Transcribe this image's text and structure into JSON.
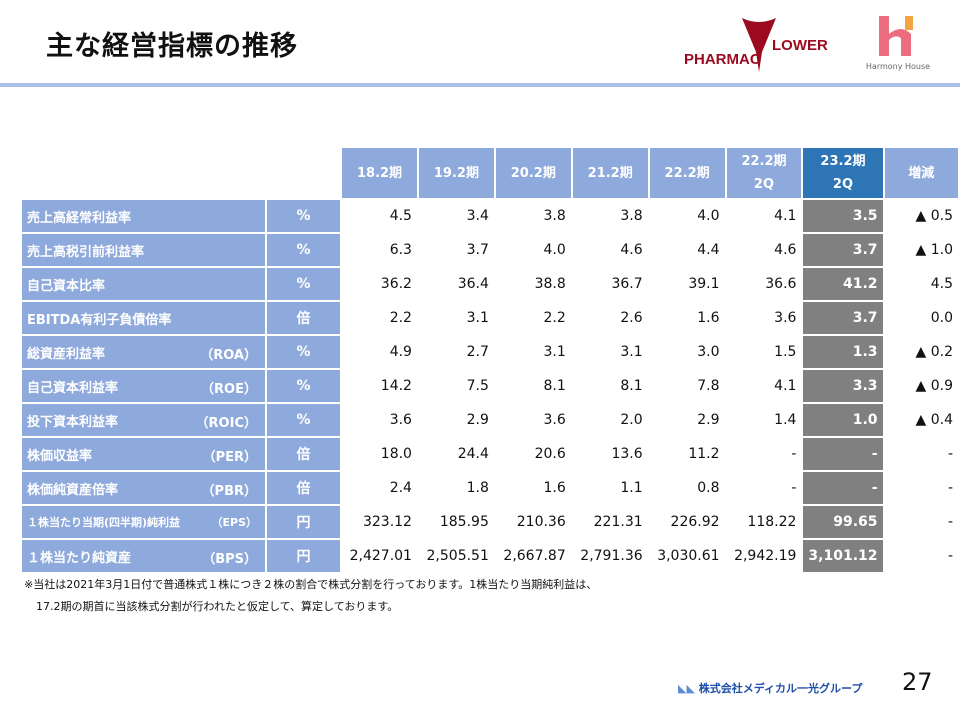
{
  "title": "主な経営指標の推移",
  "logos": {
    "pharmacflower": "PHARMAC FLOWER",
    "harmony": "Harmony House",
    "company": "株式会社メディカル一光グループ"
  },
  "headers": [
    "18.2期",
    "19.2期",
    "20.2期",
    "21.2期",
    "22.2期",
    "22.2期 2Q",
    "23.2期 2Q",
    "増減"
  ],
  "rows": [
    {
      "label": "売上高経常利益率",
      "abbr": "",
      "unit": "%",
      "values": [
        "4.5",
        "3.4",
        "3.8",
        "3.8",
        "4.0",
        "4.1",
        "3.5",
        "▲ 0.5"
      ]
    },
    {
      "label": "売上高税引前利益率",
      "abbr": "",
      "unit": "%",
      "values": [
        "6.3",
        "3.7",
        "4.0",
        "4.6",
        "4.4",
        "4.6",
        "3.7",
        "▲ 1.0"
      ]
    },
    {
      "label": "自己資本比率",
      "abbr": "",
      "unit": "%",
      "values": [
        "36.2",
        "36.4",
        "38.8",
        "36.7",
        "39.1",
        "36.6",
        "41.2",
        "4.5"
      ]
    },
    {
      "label": "EBITDA有利子負債倍率",
      "abbr": "",
      "unit": "倍",
      "values": [
        "2.2",
        "3.1",
        "2.2",
        "2.6",
        "1.6",
        "3.6",
        "3.7",
        "0.0"
      ]
    },
    {
      "label": "総資産利益率",
      "abbr": "（ROA）",
      "unit": "%",
      "values": [
        "4.9",
        "2.7",
        "3.1",
        "3.1",
        "3.0",
        "1.5",
        "1.3",
        "▲ 0.2"
      ]
    },
    {
      "label": "自己資本利益率",
      "abbr": "（ROE）",
      "unit": "%",
      "values": [
        "14.2",
        "7.5",
        "8.1",
        "8.1",
        "7.8",
        "4.1",
        "3.3",
        "▲ 0.9"
      ]
    },
    {
      "label": "投下資本利益率",
      "abbr": "（ROIC）",
      "unit": "%",
      "values": [
        "3.6",
        "2.9",
        "3.6",
        "2.0",
        "2.9",
        "1.4",
        "1.0",
        "▲ 0.4"
      ]
    },
    {
      "label": "株価収益率",
      "abbr": "（PER）",
      "unit": "倍",
      "values": [
        "18.0",
        "24.4",
        "20.6",
        "13.6",
        "11.2",
        "-",
        "-",
        "-"
      ]
    },
    {
      "label": "株価純資産倍率",
      "abbr": "（PBR）",
      "unit": "倍",
      "values": [
        "2.4",
        "1.8",
        "1.6",
        "1.1",
        "0.8",
        "-",
        "-",
        "-"
      ]
    },
    {
      "label": "１株当たり当期(四半期)純利益",
      "abbr": "（EPS）",
      "unit": "円",
      "values": [
        "323.12",
        "185.95",
        "210.36",
        "221.31",
        "226.92",
        "118.22",
        "99.65",
        "-"
      ]
    },
    {
      "label": "１株当たり純資産",
      "abbr": "（BPS）",
      "unit": "円",
      "values": [
        "2,427.01",
        "2,505.51",
        "2,667.87",
        "2,791.36",
        "3,030.61",
        "2,942.19",
        "3,101.12",
        "-"
      ]
    }
  ],
  "note": [
    "※当社は2021年3月1日付で普通株式１株につき２株の割合で株式分割を行っております。1株当たり当期純利益は、",
    "17.2期の期首に当該株式分割が行われたと仮定して、算定しております。"
  ],
  "page_number": "27"
}
